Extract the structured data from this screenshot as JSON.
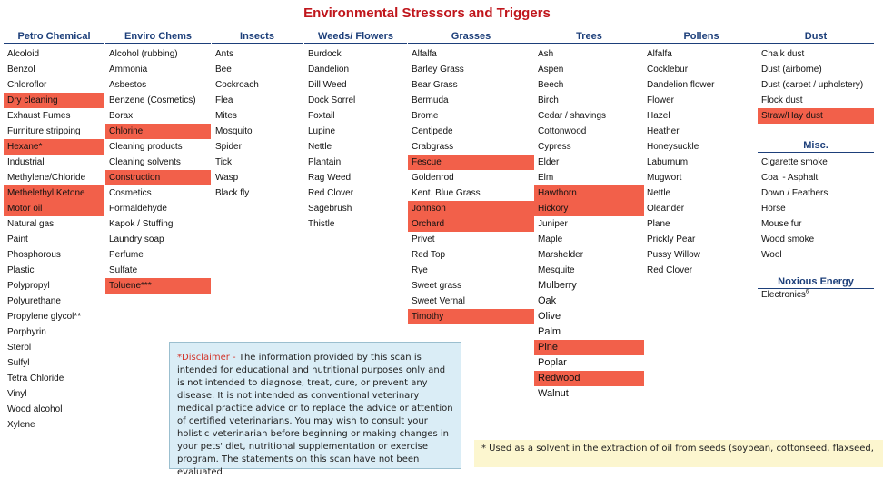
{
  "title": "Environmental Stressors and Triggers",
  "columns": {
    "petro": {
      "header": "Petro Chemical",
      "items": [
        "Alcoloid",
        "Benzol",
        "Chloroflor",
        "Dry cleaning",
        "Exhaust Fumes",
        "Furniture stripping",
        "Hexane*",
        "Industrial",
        "Methylene/Chloride",
        "Methelethyl Ketone",
        "Motor oil",
        "Natural gas",
        "Paint",
        "Phosphorous",
        "Plastic",
        "Polypropyl",
        "Polyurethane",
        "Propylene glycol**",
        "Porphyrin",
        "Sterol",
        "Sulfyl",
        "Tetra Chloride",
        "Vinyl",
        "Wood alcohol",
        "Xylene"
      ]
    },
    "enviro": {
      "header": "Enviro Chems",
      "items": [
        "Alcohol (rubbing)",
        "Ammonia",
        "Asbestos",
        "Benzene (Cosmetics)",
        "Borax",
        "Chlorine",
        "Cleaning products",
        "Cleaning solvents",
        "Construction",
        "Cosmetics",
        "Formaldehyde",
        "Kapok / Stuffing",
        "Laundry soap",
        "Perfume",
        "Sulfate",
        "Toluene***"
      ]
    },
    "insects": {
      "header": "Insects",
      "items": [
        "Ants",
        "Bee",
        "Cockroach",
        "Flea",
        "Mites",
        "Mosquito",
        "Spider",
        "Tick",
        "Wasp",
        "Black fly"
      ]
    },
    "weeds": {
      "header": "Weeds/ Flowers",
      "items": [
        "Burdock",
        "Dandelion",
        "Dill Weed",
        "Dock Sorrel",
        "Foxtail",
        "Lupine",
        "Nettle",
        "Plantain",
        "Rag Weed",
        "Red Clover",
        "Sagebrush",
        "Thistle"
      ]
    },
    "grasses": {
      "header": "Grasses",
      "items": [
        "Alfalfa",
        "Barley Grass",
        "Bear Grass",
        "Bermuda",
        "Brome",
        "Centipede",
        "Crabgrass",
        "Fescue",
        "Goldenrod",
        "Kent. Blue Grass",
        "Johnson",
        "Orchard",
        "Privet",
        "Red Top",
        "Rye",
        "Sweet grass",
        "Sweet Vernal",
        "Timothy"
      ]
    },
    "trees": {
      "header": "Trees",
      "items": [
        "Ash",
        "Aspen",
        "Beech",
        "Birch",
        "Cedar / shavings",
        "Cottonwood",
        "Cypress",
        "Elder",
        "Elm",
        "Hawthorn",
        "Hickory",
        "Juniper",
        "Maple",
        "Marshelder",
        "Mesquite",
        "Mulberry",
        "Oak",
        "Olive",
        "Palm",
        "Pine",
        "Poplar",
        "Redwood",
        "Walnut"
      ]
    },
    "pollens": {
      "header": "Pollens",
      "items": [
        "Alfalfa",
        "Cocklebur",
        "Dandelion flower",
        "Flower",
        "Hazel",
        "Heather",
        "Honeysuckle",
        "Laburnum",
        "Mugwort",
        "Nettle",
        "Oleander",
        "Plane",
        "Prickly Pear",
        "Pussy Willow",
        "Red Clover"
      ]
    },
    "dust": {
      "header": "Dust",
      "items": [
        "Chalk dust",
        "Dust (airborne)",
        "Dust (carpet / upholstery)",
        "Flock dust",
        "Straw/Hay dust"
      ]
    },
    "misc": {
      "header": "Misc.",
      "items": [
        "Cigarette smoke",
        "Coal - Asphalt",
        "Down / Feathers",
        "Horse",
        "Mouse fur",
        "Wood smoke",
        "Wool"
      ]
    },
    "noxious": {
      "header": "Noxious Energy",
      "item": "Electronics",
      "item_sup": "6"
    }
  },
  "highlight_color": "#f2604a",
  "disclaimer": {
    "lead": "*Disclaimer - ",
    "body": "The information provided by this scan is intended for educational and nutritional purposes only and is not intended to diagnose, treat, cure, or prevent any disease.  It is not intended as conventional veterinary medical practice advice or to replace the advice or attention of certified veterinarians. You may wish to consult your holistic veterinarian before beginning or making changes in your pets' diet, nutritional supplementation or exercise program.  The statements on this scan have not been evaluated"
  },
  "footnote": "* Used as a solvent in the extraction of oil from seeds (soybean, cottonseed, flaxseed,"
}
